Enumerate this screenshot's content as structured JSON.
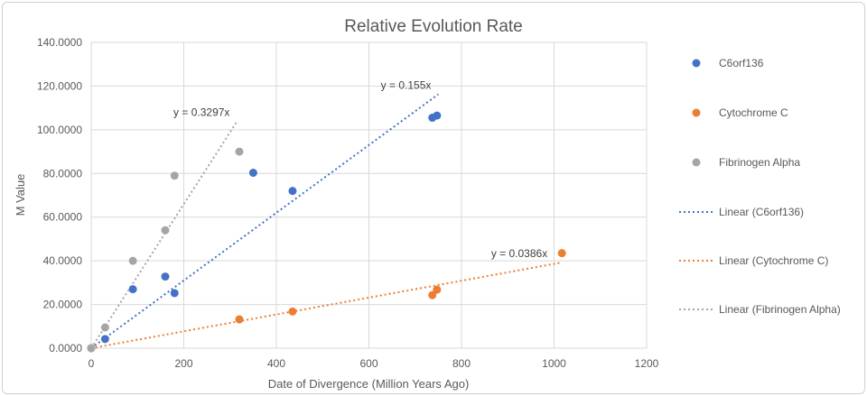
{
  "chart_data": {
    "type": "scatter",
    "title": "Relative Evolution Rate",
    "xlabel": "Date of Divergence (Million Years Ago)",
    "ylabel": "M Value",
    "xlim": [
      0,
      1200
    ],
    "ylim": [
      0,
      140
    ],
    "xticks": [
      0,
      200,
      400,
      600,
      800,
      1000,
      1200
    ],
    "yticks": [
      "0.0000",
      "20.0000",
      "40.0000",
      "60.0000",
      "80.0000",
      "100.0000",
      "120.0000",
      "140.0000"
    ],
    "grid": true,
    "legend_position": "right",
    "series": [
      {
        "name": "C6orf136",
        "color": "#4472c4",
        "points": [
          [
            0,
            0
          ],
          [
            30,
            4.2
          ],
          [
            90,
            27
          ],
          [
            160,
            32.8
          ],
          [
            180,
            25.2
          ],
          [
            350,
            80.3
          ],
          [
            435,
            72
          ],
          [
            737,
            105.5
          ],
          [
            747,
            106.5
          ]
        ],
        "trendline": {
          "name": "Linear (C6orf136)",
          "slope": 0.155,
          "x_end": 750,
          "equation": "y = 0.155x"
        }
      },
      {
        "name": "Cytochrome C",
        "color": "#ed7d31",
        "points": [
          [
            0,
            0
          ],
          [
            320,
            13.2
          ],
          [
            435,
            16.8
          ],
          [
            737,
            24.3
          ],
          [
            747,
            26.8
          ],
          [
            1017,
            43.5
          ]
        ],
        "trendline": {
          "name": "Linear (Cytochrome C)",
          "slope": 0.0386,
          "x_end": 1017,
          "equation": "y = 0.0386x"
        }
      },
      {
        "name": "Fibrinogen Alpha",
        "color": "#a5a5a5",
        "points": [
          [
            0,
            0
          ],
          [
            30,
            9.5
          ],
          [
            90,
            40
          ],
          [
            160,
            54
          ],
          [
            180,
            79
          ],
          [
            320,
            90
          ]
        ],
        "trendline": {
          "name": "Linear (Fibrinogen Alpha)",
          "slope": 0.3297,
          "x_end": 315,
          "equation": "y = 0.3297x"
        }
      }
    ]
  }
}
